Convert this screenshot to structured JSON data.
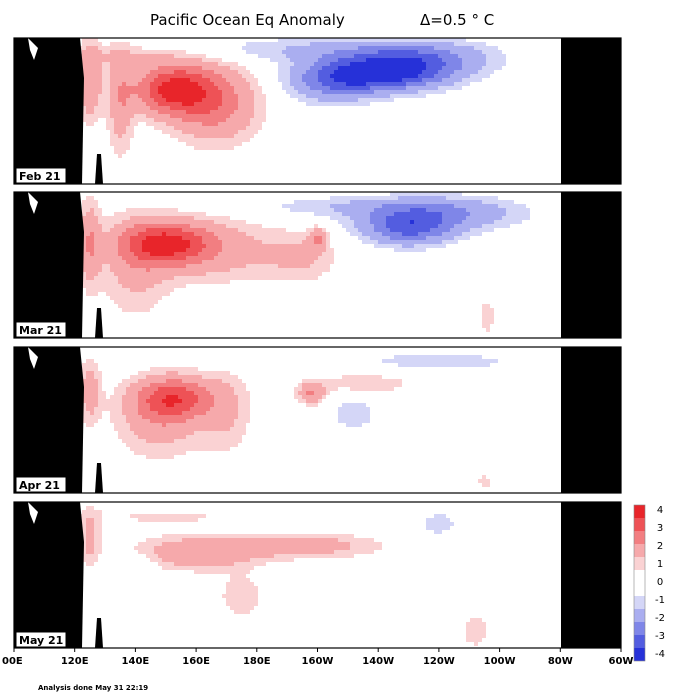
{
  "chart_data": {
    "type": "heatmap",
    "title": "Pacific Ocean Eq Anomaly",
    "contour_interval": "Δ=0.5 ° C",
    "x_ticks": [
      "00E",
      "120E",
      "140E",
      "160E",
      "180E",
      "160W",
      "140W",
      "120W",
      "100W",
      "80W",
      "60W"
    ],
    "colorbar_ticks": [
      "4",
      "3",
      "2",
      "1",
      "0",
      "-1",
      "-2",
      "-3",
      "-4"
    ],
    "colorbar_colors": [
      "#e8252a",
      "#ee5256",
      "#f27e81",
      "#f6a9ab",
      "#fad2d3",
      "#ffffff",
      "#d4d6f7",
      "#aaaef0",
      "#7f86e8",
      "#535de0",
      "#2631d8"
    ],
    "panels": [
      {
        "label": "Feb 21",
        "anomalies": [
          {
            "lon": 152,
            "depth": 0.35,
            "value": 4.0,
            "lon_spread": 9,
            "depth_spread": 0.12
          },
          {
            "lon": 166,
            "depth": 0.45,
            "value": 2.5,
            "lon_spread": 10,
            "depth_spread": 0.18
          },
          {
            "lon": 125,
            "depth": 0.3,
            "value": 2.0,
            "lon_spread": 2.5,
            "depth_spread": 0.18
          },
          {
            "lon": 135,
            "depth": 0.45,
            "value": 1.5,
            "lon_spread": 3,
            "depth_spread": 0.25
          },
          {
            "lon": 135,
            "depth": 0.12,
            "value": 0.8,
            "lon_spread": 14,
            "depth_spread": 0.06
          },
          {
            "lon": 222,
            "depth": 0.25,
            "value": -4.0,
            "lon_spread": 14,
            "depth_spread": 0.08
          },
          {
            "lon": 205,
            "depth": 0.3,
            "value": -2.2,
            "lon_spread": 10,
            "depth_spread": 0.1
          },
          {
            "lon": 232,
            "depth": 0.15,
            "value": -2.5,
            "lon_spread": 16,
            "depth_spread": 0.08
          },
          {
            "lon": 200,
            "depth": 0.08,
            "value": -1.0,
            "lon_spread": 30,
            "depth_spread": 0.06
          }
        ]
      },
      {
        "label": "Mar 21",
        "anomalies": [
          {
            "lon": 150,
            "depth": 0.35,
            "value": 3.5,
            "lon_spread": 10,
            "depth_spread": 0.1
          },
          {
            "lon": 165,
            "depth": 0.4,
            "value": 1.5,
            "lon_spread": 16,
            "depth_spread": 0.15
          },
          {
            "lon": 125,
            "depth": 0.35,
            "value": 1.8,
            "lon_spread": 2.5,
            "depth_spread": 0.2
          },
          {
            "lon": 140,
            "depth": 0.5,
            "value": 1.2,
            "lon_spread": 8,
            "depth_spread": 0.25
          },
          {
            "lon": 200,
            "depth": 0.32,
            "value": 2.0,
            "lon_spread": 2,
            "depth_spread": 0.05
          },
          {
            "lon": 195,
            "depth": 0.45,
            "value": 1.0,
            "lon_spread": 8,
            "depth_spread": 0.12
          },
          {
            "lon": 230,
            "depth": 0.25,
            "value": -3.0,
            "lon_spread": 10,
            "depth_spread": 0.08
          },
          {
            "lon": 240,
            "depth": 0.15,
            "value": -2.0,
            "lon_spread": 18,
            "depth_spread": 0.08
          },
          {
            "lon": 210,
            "depth": 0.1,
            "value": -0.8,
            "lon_spread": 25,
            "depth_spread": 0.05
          },
          {
            "lon": 256,
            "depth": 0.85,
            "value": 0.8,
            "lon_spread": 2,
            "depth_spread": 0.1
          }
        ]
      },
      {
        "label": "Apr 21",
        "anomalies": [
          {
            "lon": 153,
            "depth": 0.35,
            "value": 3.2,
            "lon_spread": 9,
            "depth_spread": 0.1
          },
          {
            "lon": 148,
            "depth": 0.5,
            "value": 1.5,
            "lon_spread": 10,
            "depth_spread": 0.18
          },
          {
            "lon": 125,
            "depth": 0.3,
            "value": 1.5,
            "lon_spread": 2.5,
            "depth_spread": 0.15
          },
          {
            "lon": 170,
            "depth": 0.45,
            "value": 1.0,
            "lon_spread": 6,
            "depth_spread": 0.2
          },
          {
            "lon": 198,
            "depth": 0.32,
            "value": 2.0,
            "lon_spread": 3,
            "depth_spread": 0.05
          },
          {
            "lon": 215,
            "depth": 0.25,
            "value": 0.8,
            "lon_spread": 14,
            "depth_spread": 0.06
          },
          {
            "lon": 212,
            "depth": 0.45,
            "value": -1.0,
            "lon_spread": 5,
            "depth_spread": 0.08
          },
          {
            "lon": 240,
            "depth": 0.1,
            "value": -0.8,
            "lon_spread": 20,
            "depth_spread": 0.05
          },
          {
            "lon": 255,
            "depth": 0.92,
            "value": 0.6,
            "lon_spread": 3,
            "depth_spread": 0.06
          }
        ]
      },
      {
        "label": "May 21",
        "anomalies": [
          {
            "lon": 160,
            "depth": 0.35,
            "value": 1.8,
            "lon_spread": 14,
            "depth_spread": 0.08
          },
          {
            "lon": 195,
            "depth": 0.3,
            "value": 1.5,
            "lon_spread": 18,
            "depth_spread": 0.06
          },
          {
            "lon": 125,
            "depth": 0.25,
            "value": 1.2,
            "lon_spread": 2.5,
            "depth_spread": 0.15
          },
          {
            "lon": 175,
            "depth": 0.65,
            "value": 0.8,
            "lon_spread": 6,
            "depth_spread": 0.12
          },
          {
            "lon": 150,
            "depth": 0.1,
            "value": 0.6,
            "lon_spread": 20,
            "depth_spread": 0.05
          },
          {
            "lon": 140,
            "depth": 0.42,
            "value": -0.7,
            "lon_spread": 5,
            "depth_spread": 0.05
          },
          {
            "lon": 240,
            "depth": 0.15,
            "value": -1.0,
            "lon_spread": 4,
            "depth_spread": 0.05
          },
          {
            "lon": 252,
            "depth": 0.88,
            "value": 1.0,
            "lon_spread": 3,
            "depth_spread": 0.08
          }
        ]
      }
    ],
    "footer": "Analysis done May 31 22:19"
  }
}
